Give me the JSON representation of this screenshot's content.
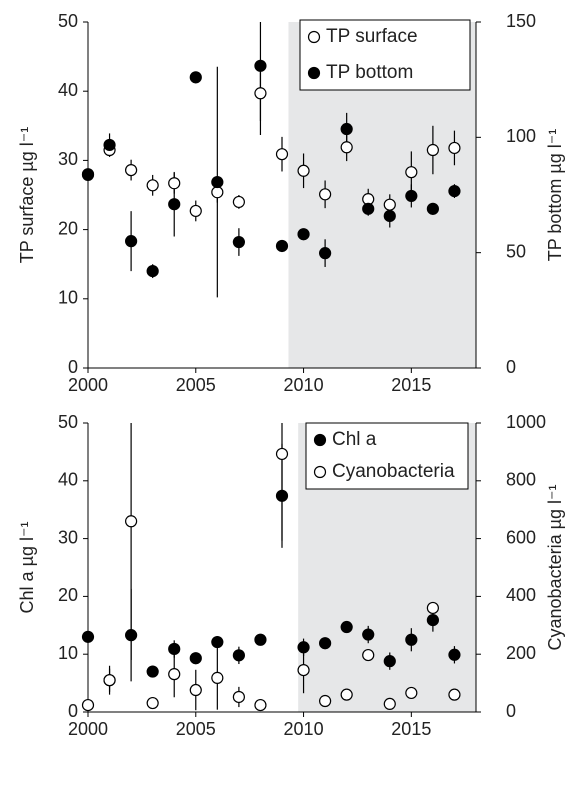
{
  "chart_data": [
    {
      "type": "scatter",
      "x": [
        2000,
        2001,
        2002,
        2003,
        2004,
        2005,
        2006,
        2007,
        2008,
        2009,
        2010,
        2011,
        2012,
        2013,
        2014,
        2015,
        2016,
        2017
      ],
      "xlim": [
        2000,
        2018
      ],
      "xticks": [
        2000,
        2005,
        2010,
        2015
      ],
      "ylim": [
        0,
        50
      ],
      "yticks": [
        0,
        10,
        20,
        30,
        40,
        50
      ],
      "y2lim": [
        0,
        150
      ],
      "y2ticks": [
        0,
        50,
        100,
        150
      ],
      "ylabel": "TP surface µg l⁻¹",
      "y2label": "TP bottom µg l⁻¹",
      "highlight_x": [
        2009.3,
        2018
      ],
      "highlight_color": "#e6e7e8",
      "series": [
        {
          "name": "TP surface",
          "marker": "open",
          "color": "#000000",
          "values": [
            28,
            31.5,
            28.6,
            26.4,
            26.7,
            22.7,
            25.4,
            24.0,
            39.7,
            30.9,
            28.5,
            25.1,
            31.9,
            24.4,
            23.6,
            28.3,
            31.5,
            31.8
          ],
          "errors": [
            null,
            1,
            1.5,
            1.5,
            1.5,
            1.5,
            1.5,
            1,
            4,
            2.5,
            2.5,
            2,
            2,
            1.5,
            1.5,
            3,
            3.5,
            2.5
          ]
        },
        {
          "name": "TP bottom",
          "marker": "filled",
          "color": "#000000",
          "axis": "y2",
          "values": [
            83.7,
            96.7,
            55,
            42,
            71,
            126,
            80.6,
            54.6,
            131,
            52.9,
            58,
            49.8,
            103.6,
            69,
            65.9,
            74.6,
            69,
            76.7
          ],
          "errors": [
            null,
            5,
            13,
            3,
            14,
            null,
            50,
            6,
            30,
            null,
            null,
            6,
            7,
            3,
            5,
            5,
            null,
            3
          ]
        }
      ]
    },
    {
      "type": "scatter",
      "x": [
        2000,
        2001,
        2002,
        2003,
        2004,
        2005,
        2006,
        2007,
        2008,
        2009,
        2010,
        2011,
        2012,
        2013,
        2014,
        2015,
        2016,
        2017
      ],
      "xlim": [
        2000,
        2018
      ],
      "xticks": [
        2000,
        2005,
        2010,
        2015
      ],
      "ylim": [
        0,
        50
      ],
      "yticks": [
        0,
        10,
        20,
        30,
        40,
        50
      ],
      "y2lim": [
        0,
        1000
      ],
      "y2ticks": [
        0,
        200,
        400,
        600,
        800,
        1000
      ],
      "ylabel": "Chl a µg l⁻¹",
      "y2label": "Cyanobacteria µg l⁻¹",
      "highlight_x": [
        2009.75,
        2018
      ],
      "highlight_color": "#e6e7e8",
      "series": [
        {
          "name": "Chl a",
          "marker": "filled",
          "color": "#000000",
          "values": [
            13,
            5.5,
            13.3,
            7,
            10.9,
            9.3,
            12.1,
            9.8,
            12.5,
            37.4,
            11.2,
            11.9,
            14.7,
            13.4,
            8.8,
            12.5,
            15.9,
            9.9
          ],
          "errors": [
            null,
            2.5,
            8,
            1,
            1.5,
            1,
            1,
            1.5,
            null,
            9,
            1.5,
            1,
            1,
            1.5,
            1.5,
            2,
            2,
            1.5
          ]
        },
        {
          "name": "Cyanobacteria",
          "marker": "open",
          "color": "#000000",
          "axis": "y2",
          "values": [
            24,
            110,
            660,
            31,
            131,
            76,
            118,
            52,
            24,
            893,
            145,
            38,
            60,
            197,
            28,
            66,
            360,
            60
          ],
          "errors": [
            null,
            40,
            480,
            null,
            80,
            70,
            110,
            35,
            null,
            300,
            80,
            null,
            null,
            null,
            null,
            null,
            20,
            null
          ]
        }
      ]
    }
  ]
}
